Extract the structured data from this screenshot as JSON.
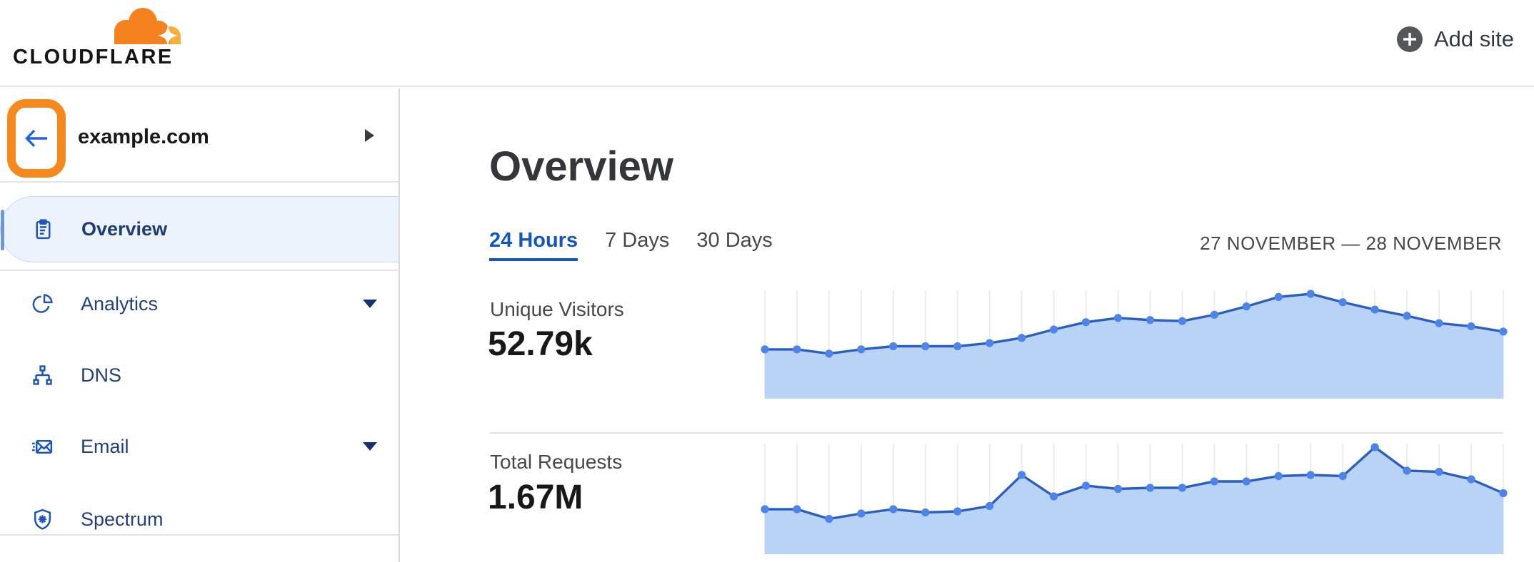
{
  "topbar": {
    "logo_text": "CLOUDFLARE",
    "add_site": {
      "label": "Add site",
      "icon": "plus-circle-icon"
    }
  },
  "sidebar": {
    "back_button": {
      "icon": "arrow-left-icon",
      "highlighted": true,
      "highlight_color": "#F6891E"
    },
    "site_name": "example.com",
    "site_expander_icon": "caret-right-icon",
    "items": [
      {
        "label": "Overview",
        "icon": "clipboard-icon",
        "selected": true,
        "has_caret": false
      },
      {
        "label": "Analytics",
        "icon": "pie-chart-icon",
        "selected": false,
        "has_caret": true
      },
      {
        "label": "DNS",
        "icon": "network-icon",
        "selected": false,
        "has_caret": false
      },
      {
        "label": "Email",
        "icon": "envelope-icon",
        "selected": false,
        "has_caret": true
      },
      {
        "label": "Spectrum",
        "icon": "shield-icon",
        "selected": false,
        "has_caret": false
      }
    ]
  },
  "main": {
    "page_title": "Overview",
    "time_tabs": [
      {
        "label": "24 Hours",
        "active": true
      },
      {
        "label": "7 Days",
        "active": false
      },
      {
        "label": "30 Days",
        "active": false
      }
    ],
    "date_range": "27 NOVEMBER — 28 NOVEMBER",
    "metrics": [
      {
        "label": "Unique Visitors",
        "value": "52.79k"
      },
      {
        "label": "Total Requests",
        "value": "1.67M"
      }
    ]
  },
  "colors": {
    "cloudflare_orange": "#F6821F",
    "cloudflare_orange_light": "#FAAD3F",
    "active_tab_blue": "#1357BB",
    "nav_icon_blue": "#1D55B8",
    "selected_item_bg": "#EDF3FC",
    "chart_line": "#2A5FC0",
    "chart_dot": "#4C84EA",
    "chart_fill": "#B9D3F6",
    "chart_grid": "#EAECF2"
  },
  "chart_data": [
    {
      "type": "area",
      "title": "Unique Visitors",
      "total_label": "52.79k",
      "period": "24 Hours",
      "date_range": "27 NOVEMBER — 28 NOVEMBER",
      "x": [
        1,
        2,
        3,
        4,
        5,
        6,
        7,
        8,
        9,
        10,
        11,
        12,
        13,
        14,
        15,
        16,
        17,
        18,
        19,
        20,
        21,
        22,
        23,
        24
      ],
      "x_axis": "hour of 24-hour window (tick labels not shown)",
      "values_norm": [
        0.47,
        0.47,
        0.43,
        0.47,
        0.5,
        0.5,
        0.5,
        0.53,
        0.58,
        0.66,
        0.73,
        0.77,
        0.75,
        0.74,
        0.8,
        0.88,
        0.97,
        1.0,
        0.92,
        0.85,
        0.79,
        0.72,
        0.69,
        0.64
      ],
      "estimated_values": [
        1520,
        1520,
        1390,
        1520,
        1620,
        1620,
        1620,
        1720,
        1880,
        2140,
        2370,
        2490,
        2430,
        2400,
        2590,
        2850,
        3140,
        3240,
        2980,
        2750,
        2560,
        2330,
        2240,
        2070
      ],
      "ylabel": "",
      "grid": "vertical-only",
      "legend": false,
      "y_axis_visible": false
    },
    {
      "type": "area",
      "title": "Total Requests",
      "total_label": "1.67M",
      "period": "24 Hours",
      "date_range": "27 NOVEMBER — 28 NOVEMBER",
      "x": [
        1,
        2,
        3,
        4,
        5,
        6,
        7,
        8,
        9,
        10,
        11,
        12,
        13,
        14,
        15,
        16,
        17,
        18,
        19,
        20,
        21,
        22,
        23,
        24
      ],
      "x_axis": "hour of 24-hour window (tick labels not shown)",
      "values_norm": [
        0.42,
        0.42,
        0.33,
        0.38,
        0.42,
        0.39,
        0.4,
        0.45,
        0.74,
        0.54,
        0.64,
        0.61,
        0.62,
        0.62,
        0.68,
        0.68,
        0.73,
        0.74,
        0.73,
        1.0,
        0.78,
        0.77,
        0.7,
        0.57
      ],
      "estimated_values": [
        47800,
        47800,
        37600,
        43300,
        47800,
        44400,
        45600,
        51300,
        84300,
        61500,
        72900,
        69500,
        70600,
        70600,
        77500,
        77500,
        83100,
        84300,
        83100,
        113900,
        88800,
        87700,
        79700,
        64900
      ],
      "ylabel": "",
      "grid": "vertical-only",
      "legend": false,
      "y_axis_visible": false
    }
  ]
}
